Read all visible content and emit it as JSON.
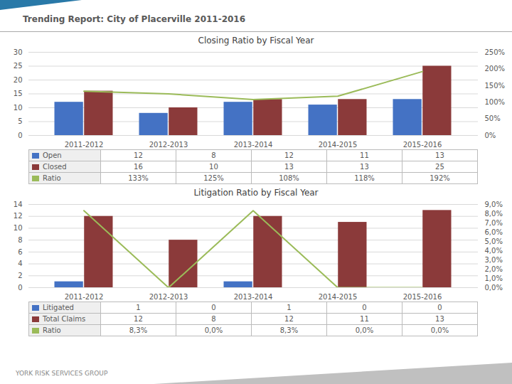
{
  "title": "Trending Report: City of Placerville 2011-2016",
  "annotations": [
    "YORK RISK SERVICES GROUP"
  ],
  "chart_data": [
    {
      "type": "bar",
      "title": "Closing Ratio by Fiscal Year",
      "categories": [
        "2011-2012",
        "2012-2013",
        "2013-2014",
        "2014-2015",
        "2015-2016"
      ],
      "series": [
        {
          "name": "Open",
          "color": "#4472C4",
          "values": [
            12,
            8,
            12,
            11,
            13
          ]
        },
        {
          "name": "Closed",
          "color": "#8B3A3A",
          "values": [
            16,
            10,
            13,
            13,
            25
          ]
        },
        {
          "name": "Ratio",
          "type": "line",
          "axis": "y2",
          "color": "#9BBB59",
          "values": [
            1.33,
            1.25,
            1.08,
            1.18,
            1.92
          ],
          "value_labels": [
            "133%",
            "125%",
            "108%",
            "118%",
            "192%"
          ]
        }
      ],
      "ylim": [
        0,
        30
      ],
      "yticks": [
        0,
        5,
        10,
        15,
        20,
        25,
        30
      ],
      "y2lim": [
        0,
        2.5
      ],
      "y2ticks": [
        {
          "value": 0.0,
          "label": "0%"
        },
        {
          "value": 0.5,
          "label": "50%"
        },
        {
          "value": 1.0,
          "label": "100%"
        },
        {
          "value": 1.5,
          "label": "150%"
        },
        {
          "value": 2.0,
          "label": "200%"
        },
        {
          "value": 2.5,
          "label": "250%"
        }
      ],
      "grid": true,
      "data_labels": true,
      "legend": "bottom"
    },
    {
      "type": "bar",
      "title": "Litigation Ratio by Fiscal Year",
      "categories": [
        "2011-2012",
        "2012-2013",
        "2013-2014",
        "2014-2015",
        "2015-2016"
      ],
      "series": [
        {
          "name": "Litigated",
          "color": "#4472C4",
          "values": [
            1,
            0,
            1,
            0,
            0
          ]
        },
        {
          "name": "Total Claims",
          "color": "#8B3A3A",
          "values": [
            12,
            8,
            12,
            11,
            13
          ]
        },
        {
          "name": "Ratio",
          "type": "line",
          "axis": "y2",
          "color": "#9BBB59",
          "values": [
            0.0833,
            0.0,
            0.0833,
            0.0,
            0.0
          ],
          "value_labels": [
            "8,3%",
            "0,0%",
            "8,3%",
            "0,0%",
            "0,0%"
          ]
        }
      ],
      "ylim": [
        0,
        14
      ],
      "yticks": [
        0,
        2,
        4,
        6,
        8,
        10,
        12,
        14
      ],
      "y2lim": [
        0,
        0.09
      ],
      "y2ticks": [
        {
          "value": 0.0,
          "label": "0,0%"
        },
        {
          "value": 0.01,
          "label": "1,0%"
        },
        {
          "value": 0.02,
          "label": "2,0%"
        },
        {
          "value": 0.03,
          "label": "3,0%"
        },
        {
          "value": 0.04,
          "label": "4,0%"
        },
        {
          "value": 0.05,
          "label": "5,0%"
        },
        {
          "value": 0.06,
          "label": "6,0%"
        },
        {
          "value": 0.07,
          "label": "7,0%"
        },
        {
          "value": 0.08,
          "label": "8,0%"
        },
        {
          "value": 0.09,
          "label": "9,0%"
        }
      ],
      "grid": true,
      "data_labels": true,
      "legend": "bottom"
    }
  ]
}
